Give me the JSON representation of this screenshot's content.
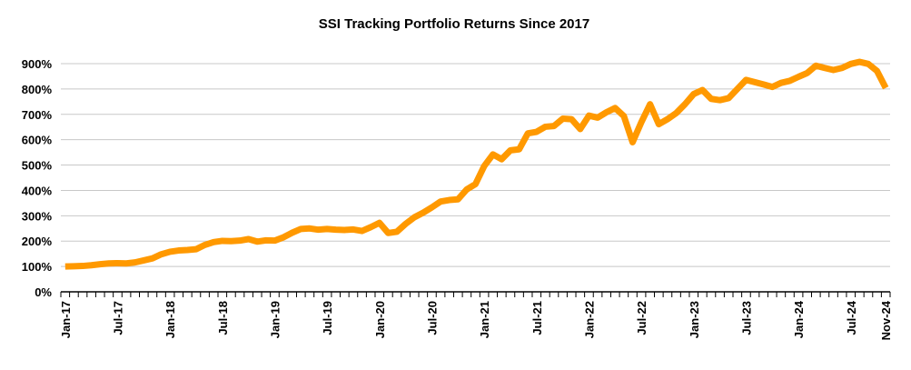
{
  "chart_data": {
    "type": "line",
    "title": "SSI Tracking Portfolio Returns Since 2017",
    "xlabel": "",
    "ylabel": "",
    "ylim": [
      0,
      900
    ],
    "y_ticks": [
      "0%",
      "100%",
      "200%",
      "300%",
      "400%",
      "500%",
      "600%",
      "700%",
      "800%",
      "900%"
    ],
    "y_tick_values": [
      0,
      100,
      200,
      300,
      400,
      500,
      600,
      700,
      800,
      900
    ],
    "x_range": [
      "Jan-17",
      "Nov-24"
    ],
    "x_tick_labels": [
      "Jan-17",
      "Jul-17",
      "Jan-18",
      "Jul-18",
      "Jan-19",
      "Jul-19",
      "Jan-20",
      "Jul-20",
      "Jan-21",
      "Jul-21",
      "Jan-22",
      "Jul-22",
      "Jan-23",
      "Jul-23",
      "Jan-24",
      "Jul-24",
      "Nov-24"
    ],
    "grid": "horizontal",
    "legend": "none",
    "color": "#FF9900",
    "series": [
      {
        "values": [
          100,
          101,
          102,
          105,
          109,
          112,
          113,
          112,
          116,
          124,
          132,
          148,
          158,
          163,
          165,
          168,
          185,
          196,
          201,
          200,
          202,
          208,
          198,
          203,
          202,
          215,
          233,
          248,
          250,
          245,
          248,
          245,
          244,
          246,
          240,
          255,
          272,
          232,
          237,
          268,
          294,
          312,
          333,
          356,
          362,
          365,
          404,
          425,
          496,
          542,
          523,
          558,
          562,
          625,
          631,
          651,
          654,
          683,
          681,
          642,
          695,
          687,
          708,
          725,
          693,
          590,
          669,
          740,
          661,
          681,
          705,
          740,
          780,
          796,
          761,
          756,
          764,
          800,
          836,
          827,
          818,
          808,
          824,
          832,
          848,
          863,
          892,
          883,
          875,
          883,
          899,
          907,
          899,
          871,
          804
        ]
      }
    ]
  }
}
